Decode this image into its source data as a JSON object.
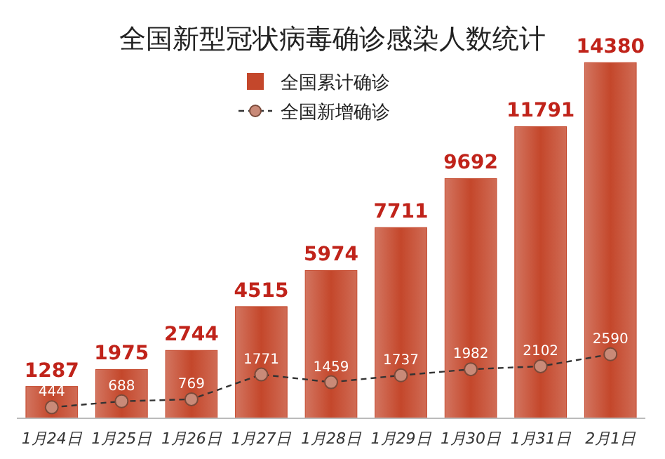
{
  "chart_data": {
    "type": "bar",
    "title": "全国新型冠状病毒确诊感染人数统计",
    "categories": [
      "1月24日",
      "1月25日",
      "1月26日",
      "1月27日",
      "1月28日",
      "1月29日",
      "1月30日",
      "1月31日",
      "2月1日"
    ],
    "series": [
      {
        "name": "全国累计确诊",
        "color": "#c4472b",
        "values": [
          1287,
          1975,
          2744,
          4515,
          5974,
          7711,
          9692,
          11791,
          14380
        ]
      },
      {
        "name": "全国新增确诊",
        "type": "line",
        "color": "#333333",
        "values": [
          444,
          688,
          769,
          1771,
          1459,
          1737,
          1982,
          2102,
          2590
        ]
      }
    ],
    "marker": "circle",
    "line_style": "dashed",
    "data_labels": true,
    "legend": "top"
  }
}
